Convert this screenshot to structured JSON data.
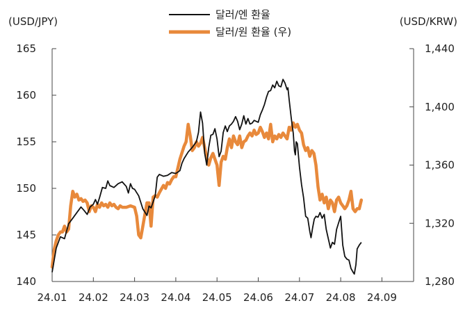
{
  "chart_data": {
    "type": "line",
    "left_axis_label": "(USD/JPY)",
    "right_axis_label": "(USD/KRW)",
    "left_ylim": [
      140,
      165
    ],
    "right_ylim": [
      1280,
      1440
    ],
    "left_ticks": [
      "140",
      "145",
      "150",
      "155",
      "160",
      "165"
    ],
    "right_ticks": [
      "1,280",
      "1,320",
      "1,360",
      "1,400",
      "1,440"
    ],
    "x_ticks": [
      "24.01",
      "24.02",
      "24.03",
      "24.04",
      "24.05",
      "24.06",
      "24.07",
      "24.08",
      "24.09"
    ],
    "legend_position": "top-center",
    "series": [
      {
        "name": "달러/엔 환율",
        "axis": "left",
        "color": "#111111",
        "points": [
          [
            0.0,
            141.0
          ],
          [
            0.1,
            143.6
          ],
          [
            0.2,
            144.8
          ],
          [
            0.3,
            144.6
          ],
          [
            0.4,
            146.2
          ],
          [
            0.5,
            146.8
          ],
          [
            0.6,
            147.4
          ],
          [
            0.7,
            148.0
          ],
          [
            0.78,
            147.6
          ],
          [
            0.85,
            147.2
          ],
          [
            0.92,
            148.0
          ],
          [
            1.0,
            148.3
          ],
          [
            1.05,
            148.8
          ],
          [
            1.1,
            148.3
          ],
          [
            1.15,
            149.0
          ],
          [
            1.22,
            150.1
          ],
          [
            1.3,
            150.0
          ],
          [
            1.35,
            150.8
          ],
          [
            1.4,
            150.3
          ],
          [
            1.5,
            150.1
          ],
          [
            1.6,
            150.5
          ],
          [
            1.7,
            150.7
          ],
          [
            1.8,
            150.2
          ],
          [
            1.85,
            149.5
          ],
          [
            1.9,
            150.5
          ],
          [
            1.95,
            150.0
          ],
          [
            2.0,
            149.9
          ],
          [
            2.1,
            149.2
          ],
          [
            2.2,
            147.8
          ],
          [
            2.3,
            147.1
          ],
          [
            2.35,
            148.1
          ],
          [
            2.4,
            147.9
          ],
          [
            2.5,
            149.2
          ],
          [
            2.55,
            151.2
          ],
          [
            2.6,
            151.5
          ],
          [
            2.7,
            151.3
          ],
          [
            2.8,
            151.4
          ],
          [
            2.9,
            151.7
          ],
          [
            3.0,
            151.6
          ],
          [
            3.1,
            151.9
          ],
          [
            3.15,
            152.7
          ],
          [
            3.2,
            153.2
          ],
          [
            3.3,
            153.9
          ],
          [
            3.4,
            154.4
          ],
          [
            3.5,
            155.0
          ],
          [
            3.55,
            156.0
          ],
          [
            3.6,
            158.2
          ],
          [
            3.65,
            157.0
          ],
          [
            3.7,
            153.8
          ],
          [
            3.75,
            152.5
          ],
          [
            3.8,
            154.4
          ],
          [
            3.85,
            155.7
          ],
          [
            3.9,
            155.8
          ],
          [
            3.95,
            156.4
          ],
          [
            4.0,
            155.3
          ],
          [
            4.05,
            153.4
          ],
          [
            4.1,
            154.0
          ],
          [
            4.15,
            156.0
          ],
          [
            4.2,
            156.7
          ],
          [
            4.25,
            156.1
          ],
          [
            4.3,
            156.7
          ],
          [
            4.35,
            156.9
          ],
          [
            4.4,
            157.2
          ],
          [
            4.45,
            157.7
          ],
          [
            4.5,
            157.2
          ],
          [
            4.55,
            156.3
          ],
          [
            4.6,
            156.9
          ],
          [
            4.65,
            157.8
          ],
          [
            4.7,
            156.9
          ],
          [
            4.75,
            157.5
          ],
          [
            4.8,
            156.9
          ],
          [
            4.85,
            157.0
          ],
          [
            4.9,
            157.3
          ],
          [
            5.0,
            157.1
          ],
          [
            5.05,
            157.9
          ],
          [
            5.1,
            158.4
          ],
          [
            5.15,
            159.0
          ],
          [
            5.2,
            159.8
          ],
          [
            5.25,
            160.4
          ],
          [
            5.3,
            160.5
          ],
          [
            5.35,
            161.1
          ],
          [
            5.4,
            160.8
          ],
          [
            5.45,
            161.5
          ],
          [
            5.5,
            161.0
          ],
          [
            5.55,
            160.9
          ],
          [
            5.6,
            161.7
          ],
          [
            5.65,
            161.3
          ],
          [
            5.7,
            160.6
          ],
          [
            5.72,
            160.8
          ],
          [
            5.75,
            159.5
          ],
          [
            5.8,
            157.6
          ],
          [
            5.85,
            155.9
          ],
          [
            5.88,
            154.0
          ],
          [
            5.9,
            153.6
          ],
          [
            5.92,
            155.0
          ],
          [
            5.95,
            154.8
          ],
          [
            6.0,
            152.3
          ],
          [
            6.05,
            150.4
          ],
          [
            6.1,
            149.0
          ],
          [
            6.15,
            147.0
          ],
          [
            6.2,
            146.8
          ],
          [
            6.25,
            145.4
          ],
          [
            6.28,
            144.7
          ],
          [
            6.32,
            145.8
          ],
          [
            6.36,
            146.7
          ],
          [
            6.4,
            147.0
          ],
          [
            6.45,
            146.9
          ],
          [
            6.5,
            147.4
          ],
          [
            6.55,
            146.8
          ],
          [
            6.6,
            147.2
          ],
          [
            6.65,
            145.6
          ],
          [
            6.7,
            144.6
          ],
          [
            6.72,
            144.2
          ],
          [
            6.75,
            143.6
          ],
          [
            6.8,
            144.2
          ],
          [
            6.85,
            144.0
          ],
          [
            6.9,
            145.6
          ],
          [
            6.95,
            146.3
          ],
          [
            7.0,
            147.0
          ],
          [
            7.05,
            143.9
          ],
          [
            7.1,
            142.7
          ],
          [
            7.15,
            142.4
          ],
          [
            7.2,
            142.3
          ],
          [
            7.25,
            141.4
          ],
          [
            7.3,
            141.0
          ],
          [
            7.33,
            140.8
          ],
          [
            7.37,
            141.8
          ],
          [
            7.4,
            143.5
          ],
          [
            7.45,
            143.9
          ],
          [
            7.5,
            144.2
          ]
        ]
      },
      {
        "name": "달러/원 환율 (우)",
        "axis": "right",
        "color": "#E8893B",
        "points": [
          [
            0.0,
            1290
          ],
          [
            0.05,
            1302
          ],
          [
            0.1,
            1308
          ],
          [
            0.15,
            1312
          ],
          [
            0.2,
            1314
          ],
          [
            0.25,
            1314
          ],
          [
            0.3,
            1318
          ],
          [
            0.35,
            1314
          ],
          [
            0.4,
            1316
          ],
          [
            0.45,
            1332
          ],
          [
            0.5,
            1342
          ],
          [
            0.55,
            1338
          ],
          [
            0.6,
            1340
          ],
          [
            0.65,
            1336
          ],
          [
            0.7,
            1337
          ],
          [
            0.75,
            1335
          ],
          [
            0.8,
            1336
          ],
          [
            0.85,
            1334
          ],
          [
            0.9,
            1328
          ],
          [
            0.95,
            1332
          ],
          [
            1.0,
            1331
          ],
          [
            1.05,
            1328
          ],
          [
            1.1,
            1333
          ],
          [
            1.15,
            1331
          ],
          [
            1.2,
            1334
          ],
          [
            1.25,
            1332
          ],
          [
            1.3,
            1333
          ],
          [
            1.35,
            1331
          ],
          [
            1.4,
            1334
          ],
          [
            1.45,
            1332
          ],
          [
            1.5,
            1333
          ],
          [
            1.55,
            1331
          ],
          [
            1.6,
            1330
          ],
          [
            1.65,
            1332
          ],
          [
            1.7,
            1331
          ],
          [
            1.8,
            1331
          ],
          [
            1.9,
            1332
          ],
          [
            2.0,
            1331
          ],
          [
            2.05,
            1325
          ],
          [
            2.1,
            1312
          ],
          [
            2.15,
            1310
          ],
          [
            2.2,
            1318
          ],
          [
            2.25,
            1326
          ],
          [
            2.3,
            1334
          ],
          [
            2.35,
            1334
          ],
          [
            2.4,
            1318
          ],
          [
            2.45,
            1338
          ],
          [
            2.5,
            1339
          ],
          [
            2.55,
            1338
          ],
          [
            2.6,
            1341
          ],
          [
            2.7,
            1346
          ],
          [
            2.75,
            1344
          ],
          [
            2.8,
            1348
          ],
          [
            2.85,
            1347
          ],
          [
            2.9,
            1350
          ],
          [
            2.95,
            1352
          ],
          [
            3.0,
            1352
          ],
          [
            3.05,
            1358
          ],
          [
            3.1,
            1364
          ],
          [
            3.2,
            1373
          ],
          [
            3.25,
            1376
          ],
          [
            3.3,
            1388
          ],
          [
            3.35,
            1380
          ],
          [
            3.4,
            1370
          ],
          [
            3.45,
            1372
          ],
          [
            3.5,
            1376
          ],
          [
            3.55,
            1373
          ],
          [
            3.6,
            1375
          ],
          [
            3.65,
            1379
          ],
          [
            3.7,
            1372
          ],
          [
            3.75,
            1365
          ],
          [
            3.8,
            1360
          ],
          [
            3.85,
            1365
          ],
          [
            3.9,
            1368
          ],
          [
            4.0,
            1360
          ],
          [
            4.05,
            1346
          ],
          [
            4.1,
            1362
          ],
          [
            4.15,
            1366
          ],
          [
            4.2,
            1364
          ],
          [
            4.25,
            1372
          ],
          [
            4.3,
            1378
          ],
          [
            4.35,
            1372
          ],
          [
            4.4,
            1380
          ],
          [
            4.45,
            1376
          ],
          [
            4.5,
            1374
          ],
          [
            4.55,
            1380
          ],
          [
            4.6,
            1372
          ],
          [
            4.65,
            1376
          ],
          [
            4.7,
            1377
          ],
          [
            4.75,
            1380
          ],
          [
            4.8,
            1382
          ],
          [
            4.85,
            1380
          ],
          [
            4.9,
            1384
          ],
          [
            4.95,
            1381
          ],
          [
            5.0,
            1382
          ],
          [
            5.05,
            1386
          ],
          [
            5.1,
            1383
          ],
          [
            5.15,
            1379
          ],
          [
            5.2,
            1382
          ],
          [
            5.25,
            1378
          ],
          [
            5.3,
            1388
          ],
          [
            5.35,
            1376
          ],
          [
            5.4,
            1380
          ],
          [
            5.45,
            1378
          ],
          [
            5.5,
            1381
          ],
          [
            5.55,
            1379
          ],
          [
            5.6,
            1382
          ],
          [
            5.65,
            1380
          ],
          [
            5.7,
            1378
          ],
          [
            5.75,
            1386
          ],
          [
            5.8,
            1384
          ],
          [
            5.85,
            1389
          ],
          [
            5.9,
            1386
          ],
          [
            5.95,
            1388
          ],
          [
            6.0,
            1384
          ],
          [
            6.05,
            1382
          ],
          [
            6.1,
            1374
          ],
          [
            6.15,
            1370
          ],
          [
            6.2,
            1372
          ],
          [
            6.25,
            1366
          ],
          [
            6.3,
            1370
          ],
          [
            6.35,
            1368
          ],
          [
            6.4,
            1360
          ],
          [
            6.45,
            1345
          ],
          [
            6.5,
            1336
          ],
          [
            6.55,
            1340
          ],
          [
            6.6,
            1334
          ],
          [
            6.65,
            1338
          ],
          [
            6.7,
            1330
          ],
          [
            6.75,
            1336
          ],
          [
            6.8,
            1334
          ],
          [
            6.85,
            1328
          ],
          [
            6.9,
            1336
          ],
          [
            6.95,
            1338
          ],
          [
            7.0,
            1334
          ],
          [
            7.05,
            1332
          ],
          [
            7.1,
            1330
          ],
          [
            7.15,
            1332
          ],
          [
            7.2,
            1336
          ],
          [
            7.25,
            1342
          ],
          [
            7.3,
            1330
          ],
          [
            7.35,
            1328
          ],
          [
            7.4,
            1330
          ],
          [
            7.45,
            1330
          ],
          [
            7.5,
            1336
          ]
        ]
      }
    ]
  }
}
